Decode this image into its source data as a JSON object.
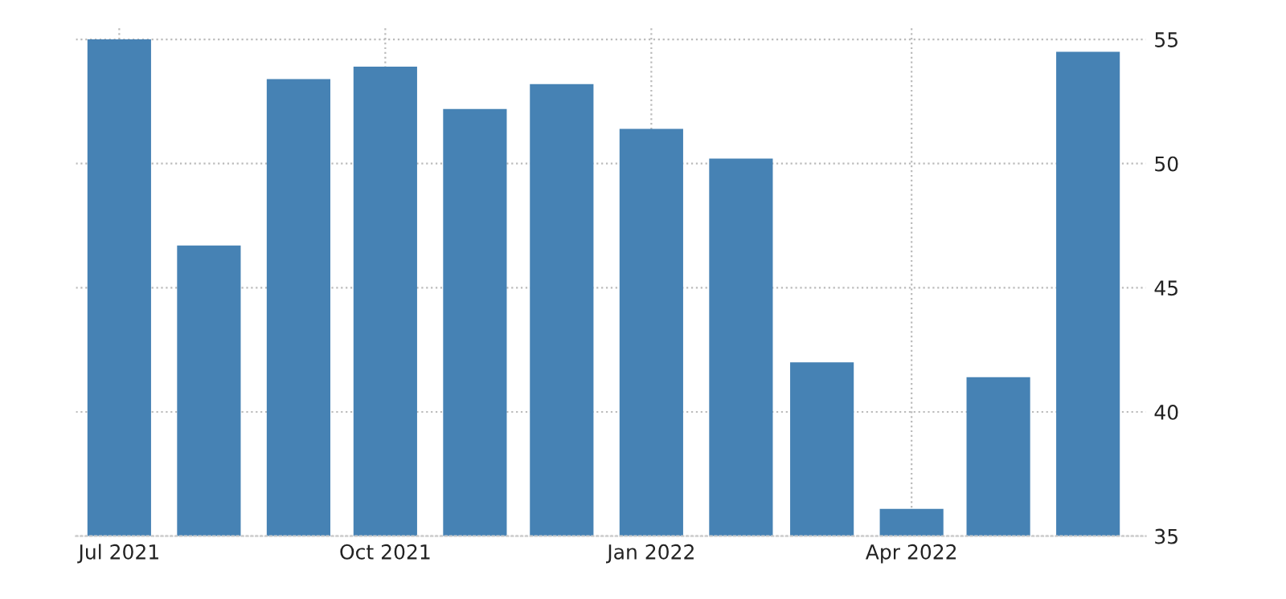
{
  "chart_data": {
    "type": "bar",
    "x": [
      "2021-07-01",
      "2021-08-01",
      "2021-09-01",
      "2021-10-01",
      "2021-11-01",
      "2021-12-01",
      "2022-01-01",
      "2022-02-01",
      "2022-03-01",
      "2022-04-01",
      "2022-05-01",
      "2022-06-01"
    ],
    "values": [
      55.0,
      46.7,
      53.4,
      53.9,
      52.2,
      53.2,
      51.4,
      50.2,
      42.0,
      36.1,
      41.4,
      54.5
    ],
    "color": "#4682b4",
    "xlim": [
      "2021-06-16",
      "2022-06-21"
    ],
    "xticks": [
      {
        "value": "2021-07-01",
        "label": "Jul 2021"
      },
      {
        "value": "2021-10-01",
        "label": "Oct 2021"
      },
      {
        "value": "2022-01-01",
        "label": "Jan 2022"
      },
      {
        "value": "2022-04-01",
        "label": "Apr 2022"
      }
    ],
    "ylim": [
      35,
      55.5
    ],
    "yticks": [
      35,
      40,
      45,
      50,
      55
    ],
    "grid": true
  }
}
